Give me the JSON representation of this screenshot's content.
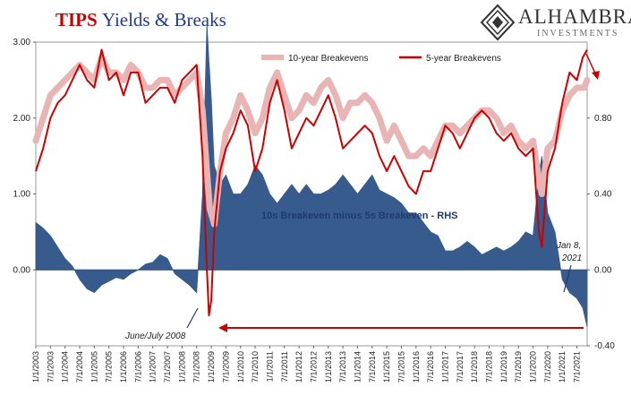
{
  "header": {
    "title_part1": "TIPS",
    "title_part2": "Yields & Breaks"
  },
  "logo": {
    "brand": "ALHAMBRA",
    "sub": "INVESTMENTS"
  },
  "colors": {
    "be10": "#e8b4b4",
    "be5": "#cc0000",
    "spread": "#2e5387",
    "text": "#222222"
  },
  "chart_data": {
    "type": "line",
    "title": "TIPS Yields & Breaks",
    "x_ticks": [
      "1/1/2003",
      "7/1/2003",
      "1/1/2004",
      "7/1/2004",
      "1/1/2005",
      "7/1/2005",
      "1/1/2006",
      "7/1/2006",
      "1/1/2007",
      "7/1/2007",
      "1/1/2008",
      "7/1/2008",
      "1/1/2009",
      "7/1/2009",
      "1/1/2010",
      "7/1/2010",
      "1/1/2011",
      "7/1/2011",
      "1/1/2012",
      "7/1/2012",
      "1/1/2013",
      "7/1/2013",
      "1/1/2014",
      "7/1/2014",
      "1/1/2015",
      "7/1/2015",
      "1/1/2016",
      "7/1/2016",
      "1/1/2017",
      "7/1/2017",
      "1/1/2018",
      "7/1/2018",
      "1/1/2019",
      "7/1/2019",
      "1/1/2020",
      "7/1/2020",
      "1/1/2021",
      "7/1/2021"
    ],
    "x_range": [
      2003.0,
      2021.85
    ],
    "y_left": {
      "ticks": [
        "3.00",
        "2.00",
        "1.00",
        "0.00"
      ],
      "range": [
        -1.0,
        3.0
      ]
    },
    "y_right": {
      "ticks": [
        "0.80",
        "0.40",
        "0.00",
        "-0.40"
      ],
      "range": [
        -0.4,
        1.2
      ]
    },
    "legend": {
      "position": "top",
      "entries": [
        "10-year Breakevens",
        "5-year Breakevens"
      ]
    },
    "series": [
      {
        "name": "10-year Breakevens",
        "axis": "left",
        "x": [
          2003.0,
          2003.25,
          2003.5,
          2003.75,
          2004.0,
          2004.25,
          2004.5,
          2004.75,
          2005.0,
          2005.25,
          2005.5,
          2005.75,
          2006.0,
          2006.25,
          2006.5,
          2006.75,
          2007.0,
          2007.25,
          2007.5,
          2007.75,
          2008.0,
          2008.25,
          2008.5,
          2008.7,
          2008.85,
          2008.95,
          2009.1,
          2009.3,
          2009.5,
          2009.75,
          2010.0,
          2010.25,
          2010.5,
          2010.75,
          2011.0,
          2011.25,
          2011.5,
          2011.75,
          2012.0,
          2012.25,
          2012.5,
          2012.75,
          2013.0,
          2013.25,
          2013.5,
          2013.75,
          2014.0,
          2014.25,
          2014.5,
          2014.75,
          2015.0,
          2015.25,
          2015.5,
          2015.75,
          2016.0,
          2016.25,
          2016.5,
          2016.75,
          2017.0,
          2017.25,
          2017.5,
          2017.75,
          2018.0,
          2018.25,
          2018.5,
          2018.75,
          2019.0,
          2019.25,
          2019.5,
          2019.75,
          2020.0,
          2020.2,
          2020.3,
          2020.5,
          2020.75,
          2021.0,
          2021.25,
          2021.5,
          2021.75,
          2021.85
        ],
        "values": [
          1.7,
          2.0,
          2.3,
          2.4,
          2.5,
          2.6,
          2.7,
          2.6,
          2.5,
          2.8,
          2.6,
          2.6,
          2.5,
          2.7,
          2.6,
          2.4,
          2.4,
          2.5,
          2.5,
          2.3,
          2.4,
          2.5,
          2.6,
          2.1,
          1.3,
          0.8,
          0.6,
          1.3,
          1.8,
          2.0,
          2.3,
          2.1,
          1.8,
          2.0,
          2.4,
          2.6,
          2.3,
          2.0,
          2.1,
          2.3,
          2.2,
          2.4,
          2.5,
          2.3,
          2.0,
          2.2,
          2.2,
          2.3,
          2.2,
          2.0,
          1.7,
          1.9,
          1.7,
          1.5,
          1.5,
          1.6,
          1.5,
          1.7,
          1.9,
          1.9,
          1.8,
          1.9,
          2.0,
          2.1,
          2.1,
          2.0,
          1.8,
          1.9,
          1.7,
          1.6,
          1.7,
          1.2,
          1.0,
          1.6,
          1.7,
          2.1,
          2.3,
          2.4,
          2.4,
          2.5
        ]
      },
      {
        "name": "5-year Breakevens",
        "axis": "left",
        "x": [
          2003.0,
          2003.25,
          2003.5,
          2003.75,
          2004.0,
          2004.25,
          2004.5,
          2004.75,
          2005.0,
          2005.25,
          2005.5,
          2005.75,
          2006.0,
          2006.25,
          2006.5,
          2006.75,
          2007.0,
          2007.25,
          2007.5,
          2007.75,
          2008.0,
          2008.25,
          2008.5,
          2008.7,
          2008.85,
          2008.92,
          2009.0,
          2009.1,
          2009.3,
          2009.5,
          2009.75,
          2010.0,
          2010.25,
          2010.5,
          2010.75,
          2011.0,
          2011.25,
          2011.5,
          2011.75,
          2012.0,
          2012.25,
          2012.5,
          2012.75,
          2013.0,
          2013.25,
          2013.5,
          2013.75,
          2014.0,
          2014.25,
          2014.5,
          2014.75,
          2015.0,
          2015.25,
          2015.5,
          2015.75,
          2016.0,
          2016.25,
          2016.5,
          2016.75,
          2017.0,
          2017.25,
          2017.5,
          2017.75,
          2018.0,
          2018.25,
          2018.5,
          2018.75,
          2019.0,
          2019.25,
          2019.5,
          2019.75,
          2020.0,
          2020.2,
          2020.3,
          2020.5,
          2020.75,
          2021.0,
          2021.25,
          2021.5,
          2021.7,
          2021.85
        ],
        "values": [
          1.3,
          1.6,
          2.0,
          2.2,
          2.3,
          2.5,
          2.7,
          2.5,
          2.4,
          2.9,
          2.5,
          2.6,
          2.3,
          2.6,
          2.6,
          2.2,
          2.3,
          2.4,
          2.4,
          2.2,
          2.5,
          2.6,
          2.7,
          1.5,
          0.0,
          -0.6,
          -0.4,
          0.5,
          1.3,
          1.6,
          1.8,
          2.1,
          1.9,
          1.3,
          1.6,
          2.2,
          2.5,
          2.1,
          1.6,
          1.8,
          2.0,
          1.9,
          2.1,
          2.3,
          2.0,
          1.6,
          1.7,
          1.8,
          1.9,
          1.8,
          1.5,
          1.3,
          1.5,
          1.3,
          1.1,
          1.0,
          1.3,
          1.3,
          1.6,
          1.9,
          1.8,
          1.6,
          1.8,
          2.0,
          2.1,
          2.0,
          1.8,
          1.7,
          1.8,
          1.6,
          1.5,
          1.6,
          0.5,
          0.3,
          1.3,
          1.6,
          2.2,
          2.6,
          2.5,
          2.8,
          2.9
        ]
      },
      {
        "name": "10s Breakeven minus 5s Breakeven - RHS",
        "axis": "right",
        "x": [
          2003.0,
          2003.25,
          2003.5,
          2003.75,
          2004.0,
          2004.25,
          2004.5,
          2004.75,
          2005.0,
          2005.25,
          2005.5,
          2005.75,
          2006.0,
          2006.25,
          2006.5,
          2006.75,
          2007.0,
          2007.25,
          2007.5,
          2007.75,
          2008.0,
          2008.25,
          2008.5,
          2008.7,
          2008.85,
          2008.92,
          2009.0,
          2009.1,
          2009.3,
          2009.5,
          2009.75,
          2010.0,
          2010.25,
          2010.5,
          2010.75,
          2011.0,
          2011.25,
          2011.5,
          2011.75,
          2012.0,
          2012.25,
          2012.5,
          2012.75,
          2013.0,
          2013.25,
          2013.5,
          2013.75,
          2014.0,
          2014.25,
          2014.5,
          2014.75,
          2015.0,
          2015.25,
          2015.5,
          2015.75,
          2016.0,
          2016.25,
          2016.5,
          2016.75,
          2017.0,
          2017.25,
          2017.5,
          2017.75,
          2018.0,
          2018.25,
          2018.5,
          2018.75,
          2019.0,
          2019.25,
          2019.5,
          2019.75,
          2020.0,
          2020.2,
          2020.3,
          2020.5,
          2020.75,
          2021.0,
          2021.25,
          2021.5,
          2021.7,
          2021.85
        ],
        "values": [
          0.25,
          0.22,
          0.18,
          0.12,
          0.06,
          0.02,
          -0.05,
          -0.1,
          -0.12,
          -0.08,
          -0.06,
          -0.04,
          -0.05,
          -0.02,
          0.0,
          0.03,
          0.04,
          0.08,
          0.06,
          -0.02,
          -0.05,
          -0.08,
          -0.12,
          0.4,
          1.3,
          1.1,
          0.9,
          0.55,
          0.45,
          0.5,
          0.4,
          0.4,
          0.45,
          0.55,
          0.5,
          0.4,
          0.35,
          0.4,
          0.45,
          0.4,
          0.45,
          0.4,
          0.4,
          0.42,
          0.45,
          0.5,
          0.45,
          0.4,
          0.45,
          0.5,
          0.42,
          0.4,
          0.38,
          0.35,
          0.3,
          0.3,
          0.25,
          0.2,
          0.18,
          0.1,
          0.1,
          0.12,
          0.15,
          0.12,
          0.08,
          0.1,
          0.12,
          0.1,
          0.12,
          0.15,
          0.2,
          0.18,
          0.5,
          0.6,
          0.3,
          0.2,
          -0.05,
          -0.12,
          -0.15,
          -0.2,
          -0.3
        ]
      }
    ],
    "annotations": [
      {
        "text": "10s Breakeven minus 5s Breakeven - RHS"
      },
      {
        "text": "June/July 2008"
      },
      {
        "text": "Jan 8,",
        "text2": "2021"
      }
    ]
  }
}
